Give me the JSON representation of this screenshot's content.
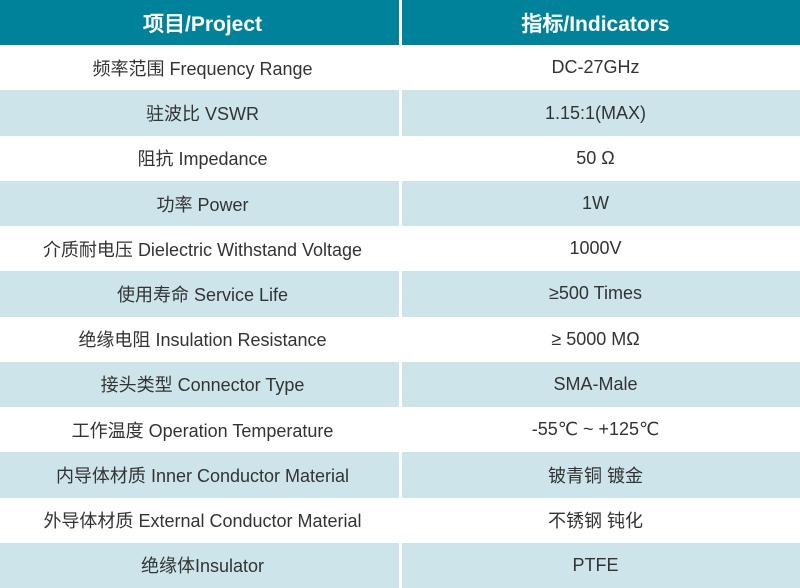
{
  "colors": {
    "header_bg": "#00829a",
    "alt_row_bg": "#cde5ea",
    "divider": "#ffffff",
    "header_text": "#ffffff",
    "body_text": "#333333"
  },
  "chart_data": {
    "type": "table",
    "columns": [
      "项目/Project",
      "指标/Indicators"
    ],
    "rows": [
      [
        "频率范围 Frequency Range",
        "DC-27GHz"
      ],
      [
        "驻波比 VSWR",
        "1.15:1(MAX)"
      ],
      [
        "阻抗 Impedance",
        "50 Ω"
      ],
      [
        "功率 Power",
        "1W"
      ],
      [
        "介质耐电压 Dielectric Withstand Voltage",
        "1000V"
      ],
      [
        "使用寿命 Service Life",
        "≥500 Times"
      ],
      [
        "绝缘电阻 Insulation Resistance",
        "≥ 5000 MΩ"
      ],
      [
        "接头类型 Connector Type",
        "SMA-Male"
      ],
      [
        "工作温度 Operation Temperature",
        "-55℃ ~ +125℃"
      ],
      [
        "内导体材质 Inner Conductor Material",
        "铍青铜 镀金"
      ],
      [
        "外导体材质 External Conductor Material",
        "不锈钢 钝化"
      ],
      [
        "绝缘体Insulator",
        "PTFE"
      ]
    ]
  },
  "table": {
    "header": {
      "project": "项目/Project",
      "indicators": "指标/Indicators"
    },
    "rows": [
      {
        "project": "频率范围 Frequency Range",
        "indicator": "DC-27GHz"
      },
      {
        "project": "驻波比 VSWR",
        "indicator": "1.15:1(MAX)"
      },
      {
        "project": "阻抗 Impedance",
        "indicator": "50 Ω"
      },
      {
        "project": "功率 Power",
        "indicator": "1W"
      },
      {
        "project": "介质耐电压 Dielectric Withstand Voltage",
        "indicator": "1000V"
      },
      {
        "project": "使用寿命 Service Life",
        "indicator": "≥500 Times"
      },
      {
        "project": "绝缘电阻 Insulation Resistance",
        "indicator": "≥ 5000 MΩ"
      },
      {
        "project": "接头类型 Connector Type",
        "indicator": "SMA-Male"
      },
      {
        "project": "工作温度 Operation Temperature",
        "indicator": "-55℃ ~ +125℃"
      },
      {
        "project": "内导体材质 Inner Conductor Material",
        "indicator": "铍青铜 镀金"
      },
      {
        "project": "外导体材质 External Conductor Material",
        "indicator": "不锈钢 钝化"
      },
      {
        "project": "绝缘体Insulator",
        "indicator": "PTFE"
      }
    ]
  }
}
